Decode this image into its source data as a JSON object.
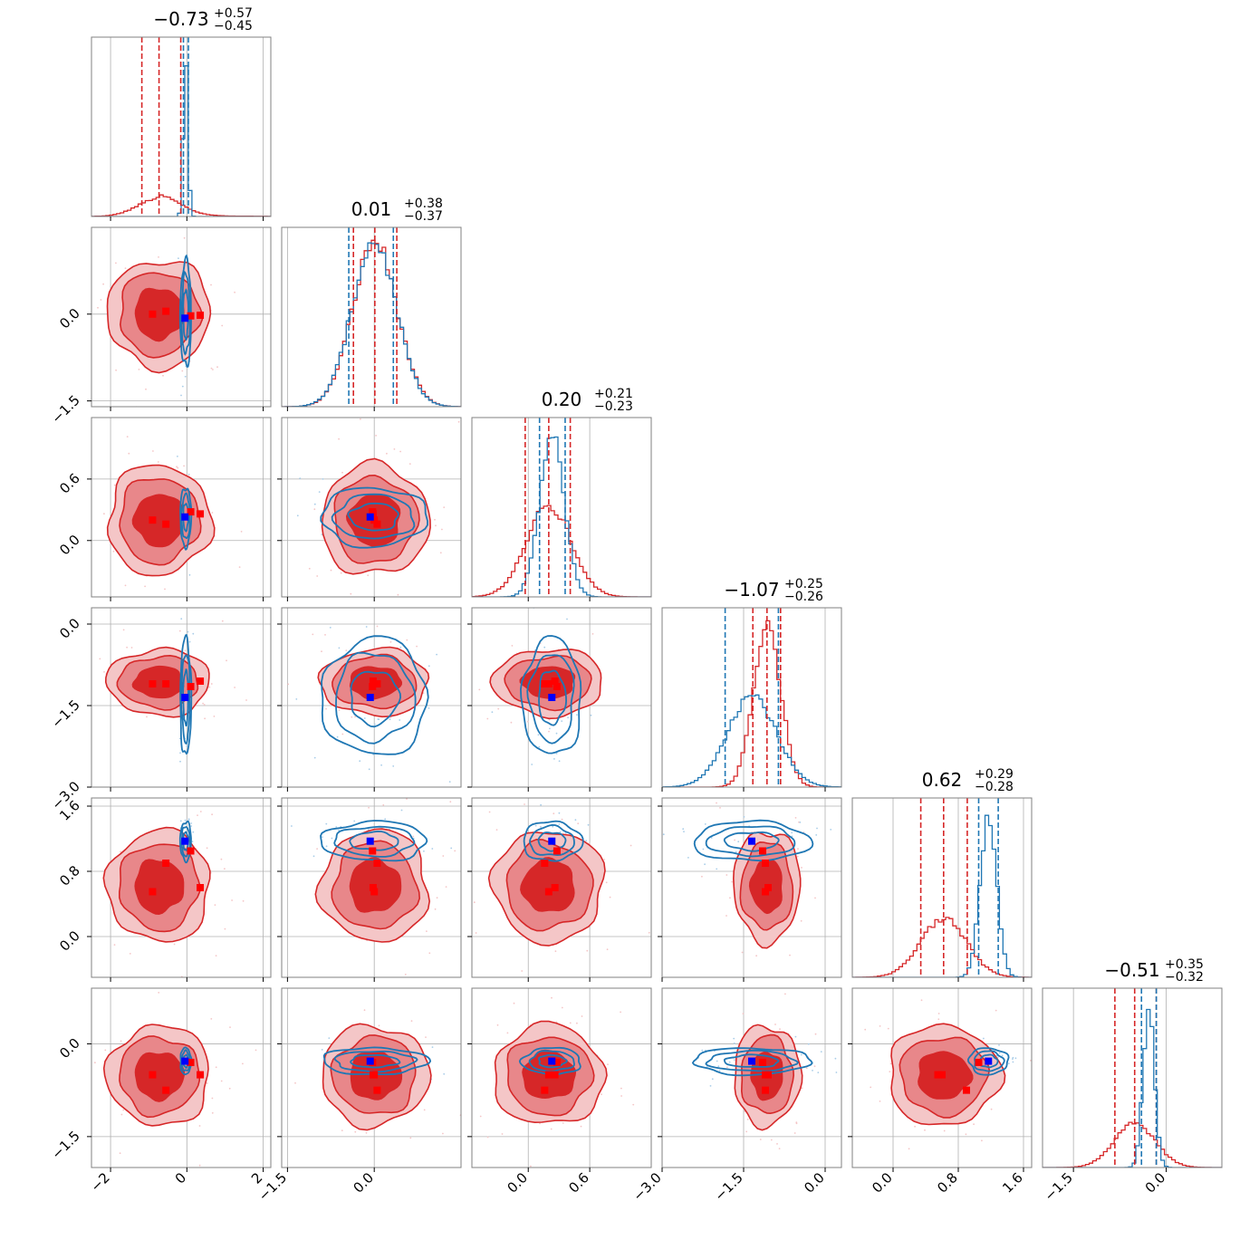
{
  "colors": {
    "red": "#d62728",
    "red_mid": "#e8878a",
    "red_light": "#f4c6c7",
    "blue": "#1f77b4",
    "marker_red": "#ff0000",
    "marker_blue": "#0000ff",
    "grid": "#b0b0b0"
  },
  "chart_data": {
    "type": "corner",
    "grid": true,
    "parameters": [
      {
        "title": "−0.73",
        "plus": "+0.57",
        "minus": "−0.45",
        "range": [
          -2.5,
          2.2
        ],
        "ticks": [
          -2,
          0,
          2
        ],
        "tick_labels": [
          "−2",
          "0",
          "2"
        ],
        "red_median": -0.73,
        "red_q": [
          -1.18,
          -0.16
        ],
        "blue_median": -0.03,
        "blue_q": [
          -0.09,
          0.04
        ],
        "red_sd": 0.55,
        "red_tail": 0.9,
        "blue_sd": 0.06
      },
      {
        "title": "0.01",
        "plus": "+0.38",
        "minus": "−0.37",
        "range": [
          -1.6,
          1.5
        ],
        "ticks": [
          -1.5,
          0.0
        ],
        "tick_labels": [
          "−1.5",
          "0.0"
        ],
        "red_median": 0.01,
        "red_q": [
          -0.36,
          0.39
        ],
        "blue_median": 0.0,
        "blue_q": [
          -0.44,
          0.33
        ],
        "red_sd": 0.38,
        "red_tail": 0,
        "blue_sd": 0.38
      },
      {
        "title": "0.20",
        "plus": "+0.21",
        "minus": "−0.23",
        "range": [
          -0.55,
          1.2
        ],
        "ticks": [
          0.0,
          0.6
        ],
        "tick_labels": [
          "0.0",
          "0.6"
        ],
        "red_median": 0.2,
        "red_q": [
          -0.03,
          0.41
        ],
        "blue_median": 0.23,
        "blue_q": [
          0.11,
          0.36
        ],
        "red_sd": 0.22,
        "red_tail": 0,
        "blue_sd": 0.12
      },
      {
        "title": "−1.07",
        "plus": "+0.25",
        "minus": "−0.26",
        "range": [
          -3.0,
          0.3
        ],
        "ticks": [
          -3.0,
          -1.5,
          0.0
        ],
        "tick_labels": [
          "−3.0",
          "−1.5",
          "0.0"
        ],
        "red_median": -1.07,
        "red_q": [
          -1.33,
          -0.82
        ],
        "blue_median": -1.35,
        "blue_q": [
          -1.84,
          -0.86
        ],
        "red_sd": 0.25,
        "red_tail": 0,
        "blue_sd": 0.45
      },
      {
        "title": "0.62",
        "plus": "+0.29",
        "minus": "−0.28",
        "range": [
          -0.5,
          1.7
        ],
        "ticks": [
          0.0,
          0.8,
          1.6
        ],
        "tick_labels": [
          "0.0",
          "0.8",
          "1.6"
        ],
        "red_median": 0.62,
        "red_q": [
          0.34,
          0.91
        ],
        "blue_median": 1.17,
        "blue_q": [
          1.05,
          1.29
        ],
        "red_sd": 0.28,
        "red_tail": 0,
        "blue_sd": 0.1
      },
      {
        "title": "−0.51",
        "plus": "+0.35",
        "minus": "−0.32",
        "range": [
          -2.0,
          0.9
        ],
        "ticks": [
          -1.5,
          0.0
        ],
        "tick_labels": [
          "−1.5",
          "0.0"
        ],
        "red_median": -0.51,
        "red_q": [
          -0.83,
          -0.16
        ],
        "blue_median": -0.28,
        "blue_q": [
          -0.4,
          -0.16
        ],
        "red_sd": 0.33,
        "red_tail": 0,
        "blue_sd": 0.09
      }
    ],
    "blue_truth": [
      -0.05,
      -0.07,
      0.23,
      -1.35,
      1.17,
      -0.28
    ],
    "red_markers": [
      [
        -0.9,
        0.0,
        0.2,
        -1.1,
        0.55,
        -0.5
      ],
      [
        -0.55,
        0.05,
        0.16,
        -1.1,
        0.9,
        -0.75
      ],
      [
        0.1,
        -0.03,
        0.28,
        -1.15,
        1.05,
        -0.3
      ],
      [
        0.35,
        -0.02,
        0.26,
        -1.05,
        0.6,
        -0.5
      ]
    ]
  }
}
